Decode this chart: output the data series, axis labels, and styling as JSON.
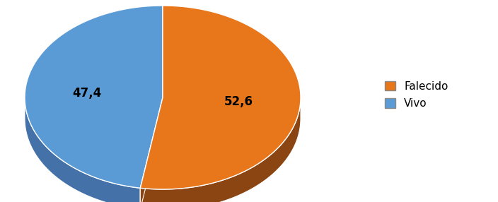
{
  "labels": [
    "Falecido",
    "Vivo"
  ],
  "values": [
    52.6,
    47.4
  ],
  "colors_top": [
    "#E8761A",
    "#5B9BD5"
  ],
  "colors_side": [
    "#8B4513",
    "#4472A8"
  ],
  "label_texts": [
    "52,6",
    "47,4"
  ],
  "legend_labels": [
    "Falecido",
    "Vivo"
  ],
  "background_color": "#FFFFFF",
  "text_fontsize": 12,
  "legend_fontsize": 11,
  "figsize": [
    7.04,
    2.86
  ],
  "dpi": 100,
  "start_angle": 90
}
